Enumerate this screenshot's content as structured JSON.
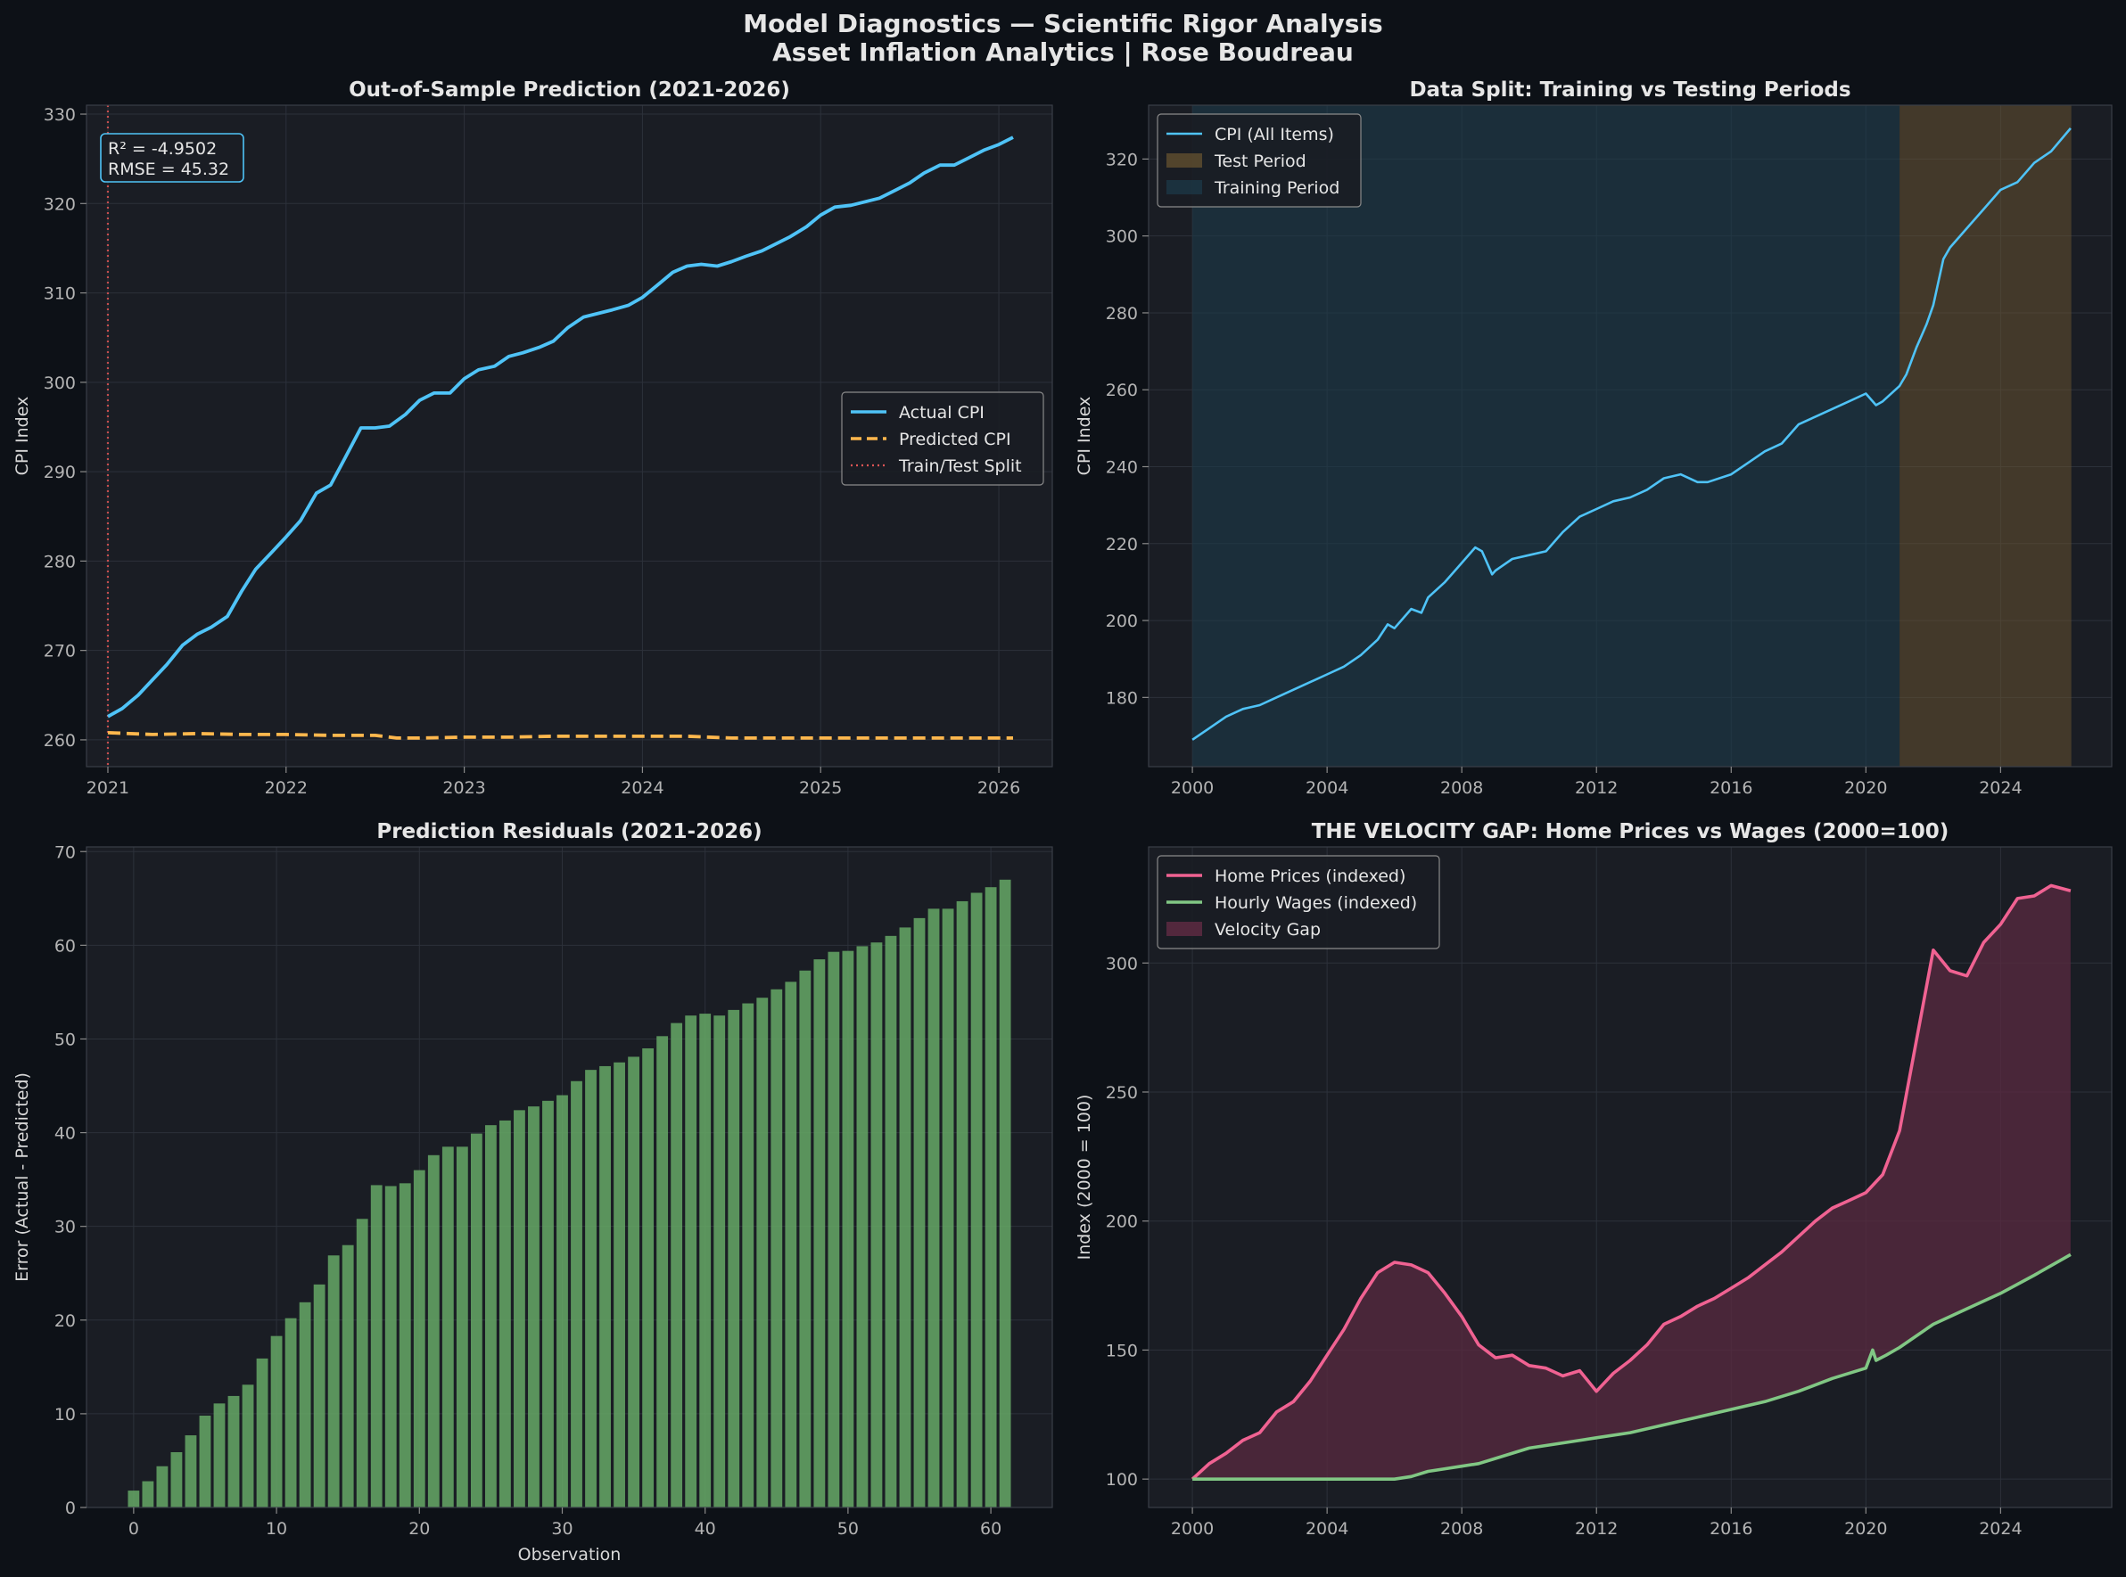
{
  "suptitle": "Model Diagnostics — Scientific Rigor Analysis",
  "subtitle": "Asset Inflation Analytics | Rose Boudreau",
  "colors": {
    "background": "#0d1117",
    "axes_bg": "#1a1d24",
    "grid": "#2c313a",
    "actual": "#4fc3f7",
    "predicted": "#ffb74d",
    "split": "#e05555",
    "residual_bar": "#66a866",
    "training_span": "#1d3a4a",
    "test_span": "#6b5530",
    "home_prices": "#f06292",
    "wages": "#81c784",
    "gap_fill": "#5a2a40"
  },
  "chart_data": [
    {
      "id": "oos",
      "type": "line",
      "title": "Out-of-Sample Prediction (2021-2026)",
      "xlabel": "",
      "ylabel": "CPI Index",
      "xlim": [
        2020.88,
        2026.3
      ],
      "ylim": [
        257,
        331
      ],
      "xticks": [
        2021,
        2022,
        2023,
        2024,
        2025,
        2026
      ],
      "yticks": [
        260,
        270,
        280,
        290,
        300,
        310,
        320,
        330
      ],
      "annotation": [
        "R² = -4.9502",
        "RMSE = 45.32"
      ],
      "legend_position": "center-right",
      "legend": [
        "Actual CPI",
        "Predicted CPI",
        "Train/Test Split"
      ],
      "split_x": 2021.0,
      "series": [
        {
          "name": "Actual CPI",
          "style": "solid",
          "x": [
            2021.0,
            2021.08,
            2021.17,
            2021.25,
            2021.33,
            2021.42,
            2021.5,
            2021.58,
            2021.67,
            2021.75,
            2021.83,
            2021.92,
            2022.0,
            2022.08,
            2022.17,
            2022.25,
            2022.33,
            2022.42,
            2022.5,
            2022.58,
            2022.67,
            2022.75,
            2022.83,
            2022.92,
            2023.0,
            2023.08,
            2023.17,
            2023.25,
            2023.33,
            2023.42,
            2023.5,
            2023.58,
            2023.67,
            2023.75,
            2023.83,
            2023.92,
            2024.0,
            2024.08,
            2024.17,
            2024.25,
            2024.33,
            2024.42,
            2024.5,
            2024.58,
            2024.67,
            2024.75,
            2024.83,
            2024.92,
            2025.0,
            2025.08,
            2025.17,
            2025.25,
            2025.33,
            2025.42,
            2025.5,
            2025.58,
            2025.67,
            2025.75,
            2025.83,
            2025.92,
            2026.0,
            2026.08
          ],
          "y": [
            262.6,
            263.5,
            265.0,
            266.7,
            268.4,
            270.6,
            271.8,
            272.6,
            273.8,
            276.6,
            279.1,
            281.0,
            282.7,
            284.5,
            287.6,
            288.5,
            291.5,
            294.9,
            294.9,
            295.1,
            296.4,
            298.0,
            298.8,
            298.8,
            300.4,
            301.4,
            301.8,
            302.9,
            303.3,
            303.9,
            304.6,
            306.1,
            307.3,
            307.7,
            308.1,
            308.6,
            309.5,
            310.8,
            312.3,
            313.0,
            313.2,
            313.0,
            313.5,
            314.1,
            314.7,
            315.5,
            316.3,
            317.4,
            318.7,
            319.6,
            319.8,
            320.2,
            320.6,
            321.5,
            322.3,
            323.4,
            324.3,
            324.3,
            325.1,
            326.0,
            326.6,
            327.4
          ]
        },
        {
          "name": "Predicted CPI",
          "style": "dashed",
          "x": [
            2021.0,
            2021.25,
            2021.5,
            2021.75,
            2022.0,
            2022.25,
            2022.5,
            2022.62,
            2022.75,
            2023.0,
            2023.25,
            2023.5,
            2023.75,
            2024.0,
            2024.25,
            2024.5,
            2024.75,
            2025.0,
            2025.25,
            2025.5,
            2025.75,
            2026.0,
            2026.08
          ],
          "y": [
            260.8,
            260.6,
            260.7,
            260.6,
            260.6,
            260.5,
            260.5,
            260.2,
            260.2,
            260.3,
            260.3,
            260.4,
            260.4,
            260.4,
            260.4,
            260.2,
            260.2,
            260.2,
            260.2,
            260.2,
            260.2,
            260.2,
            260.2
          ]
        }
      ]
    },
    {
      "id": "split",
      "type": "line",
      "title": "Data Split: Training vs Testing Periods",
      "xlabel": "",
      "ylabel": "CPI Index",
      "xlim": [
        1998.7,
        2027.3
      ],
      "ylim": [
        162,
        334
      ],
      "xticks": [
        2000,
        2004,
        2008,
        2012,
        2016,
        2020,
        2024
      ],
      "yticks": [
        180,
        200,
        220,
        240,
        260,
        280,
        300,
        320
      ],
      "legend_position": "upper-left",
      "legend": [
        "CPI (All Items)",
        "Test Period",
        "Training Period"
      ],
      "training_period": [
        2000,
        2021
      ],
      "test_period": [
        2021,
        2026.1
      ],
      "series": [
        {
          "name": "CPI (All Items)",
          "x": [
            2000,
            2000.5,
            2001,
            2001.5,
            2002,
            2002.5,
            2003,
            2003.5,
            2004,
            2004.5,
            2005,
            2005.5,
            2005.8,
            2006,
            2006.5,
            2006.8,
            2007,
            2007.5,
            2008,
            2008.4,
            2008.6,
            2008.9,
            2009,
            2009.5,
            2010,
            2010.5,
            2011,
            2011.5,
            2012,
            2012.5,
            2013,
            2013.5,
            2014,
            2014.5,
            2015,
            2015.3,
            2016,
            2016.5,
            2017,
            2017.5,
            2018,
            2018.5,
            2019,
            2019.5,
            2020,
            2020.3,
            2020.5,
            2021,
            2021.2,
            2021.5,
            2021.8,
            2022,
            2022.3,
            2022.5,
            2023,
            2023.5,
            2024,
            2024.5,
            2025,
            2025.5,
            2026.08
          ],
          "y": [
            169,
            172,
            175,
            177,
            178,
            180,
            182,
            184,
            186,
            188,
            191,
            195,
            199,
            198,
            203,
            202,
            206,
            210,
            215,
            219,
            218,
            212,
            213,
            216,
            217,
            218,
            223,
            227,
            229,
            231,
            232,
            234,
            237,
            238,
            236,
            236,
            238,
            241,
            244,
            246,
            251,
            253,
            255,
            257,
            259,
            256,
            257,
            261,
            264,
            271,
            277,
            282,
            294,
            297,
            302,
            307,
            312,
            314,
            319,
            322,
            328
          ]
        }
      ]
    },
    {
      "id": "residuals",
      "type": "bar",
      "title": "Prediction Residuals (2021-2026)",
      "xlabel": "Observation",
      "ylabel": "Error (Actual - Predicted)",
      "xlim": [
        -3.3,
        64.3
      ],
      "ylim": [
        0,
        70.5
      ],
      "xticks": [
        0,
        10,
        20,
        30,
        40,
        50,
        60
      ],
      "yticks": [
        0,
        10,
        20,
        30,
        40,
        50,
        60,
        70
      ],
      "values": [
        1.8,
        2.8,
        4.4,
        5.9,
        7.7,
        9.8,
        11.1,
        11.9,
        13.1,
        15.9,
        18.3,
        20.2,
        21.9,
        23.8,
        26.9,
        28.0,
        30.8,
        34.4,
        34.3,
        34.6,
        36.0,
        37.6,
        38.5,
        38.5,
        39.9,
        40.8,
        41.3,
        42.4,
        42.8,
        43.4,
        44.0,
        45.5,
        46.7,
        47.1,
        47.5,
        48.1,
        49.0,
        50.3,
        51.7,
        52.5,
        52.7,
        52.5,
        53.1,
        53.8,
        54.4,
        55.3,
        56.1,
        57.3,
        58.5,
        59.3,
        59.4,
        59.9,
        60.3,
        61.0,
        61.9,
        62.9,
        63.9,
        63.9,
        64.7,
        65.6,
        66.2,
        67.0
      ]
    },
    {
      "id": "velocity",
      "type": "area",
      "title": "THE VELOCITY GAP: Home Prices vs Wages (2000=100)",
      "xlabel": "",
      "ylabel": "Index (2000 = 100)",
      "xlim": [
        1998.7,
        2027.3
      ],
      "ylim": [
        89,
        345
      ],
      "xticks": [
        2000,
        2004,
        2008,
        2012,
        2016,
        2020,
        2024
      ],
      "yticks": [
        100,
        150,
        200,
        250,
        300
      ],
      "legend_position": "upper-left",
      "legend": [
        "Home Prices (indexed)",
        "Hourly Wages (indexed)",
        "Velocity Gap"
      ],
      "series": [
        {
          "name": "Home Prices (indexed)",
          "x": [
            2000,
            2000.5,
            2001,
            2001.5,
            2002,
            2002.5,
            2003,
            2003.5,
            2004,
            2004.5,
            2005,
            2005.5,
            2006,
            2006.5,
            2007,
            2007.5,
            2008,
            2008.5,
            2009,
            2009.5,
            2010,
            2010.5,
            2011,
            2011.5,
            2012,
            2012.5,
            2013,
            2013.5,
            2014,
            2014.5,
            2015,
            2015.5,
            2016,
            2016.5,
            2017,
            2017.5,
            2018,
            2018.5,
            2019,
            2019.5,
            2020,
            2020.5,
            2021,
            2021.5,
            2022,
            2022.5,
            2023,
            2023.5,
            2024,
            2024.5,
            2025,
            2025.5,
            2026.08
          ],
          "y": [
            100,
            106,
            110,
            115,
            118,
            126,
            130,
            138,
            148,
            158,
            170,
            180,
            184,
            183,
            180,
            172,
            163,
            152,
            147,
            148,
            144,
            143,
            140,
            142,
            134,
            141,
            146,
            152,
            160,
            163,
            167,
            170,
            174,
            178,
            183,
            188,
            194,
            200,
            205,
            208,
            211,
            218,
            235,
            270,
            305,
            297,
            295,
            308,
            315,
            325,
            326,
            330,
            328
          ]
        },
        {
          "name": "Hourly Wages (indexed)",
          "x": [
            2000,
            2002,
            2004,
            2006,
            2006.5,
            2007,
            2007.5,
            2008,
            2008.5,
            2009,
            2010,
            2011,
            2012,
            2013,
            2014,
            2015,
            2016,
            2017,
            2018,
            2019,
            2020,
            2020.2,
            2020.3,
            2020.6,
            2021,
            2022,
            2023,
            2024,
            2025,
            2026.08
          ],
          "y": [
            100,
            100,
            100,
            100,
            101,
            103,
            104,
            105,
            106,
            108,
            112,
            114,
            116,
            118,
            121,
            124,
            127,
            130,
            134,
            139,
            143,
            150,
            146,
            148,
            151,
            160,
            166,
            172,
            179,
            187
          ]
        }
      ]
    }
  ]
}
